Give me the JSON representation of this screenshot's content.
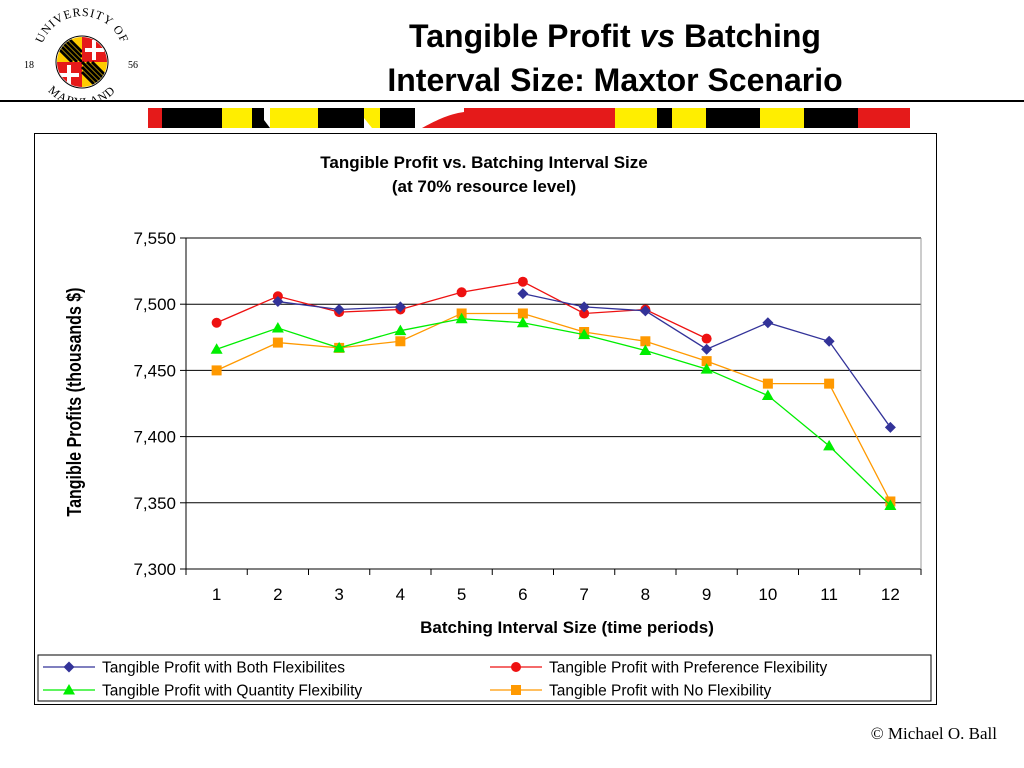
{
  "slide": {
    "title_part1": "Tangible Profit",
    "title_vs": "vs",
    "title_part2": "Batching",
    "title_line2": "Interval Size:  Maxtor Scenario",
    "copyright": "© Michael O. Ball"
  },
  "logo": {
    "arc_top": "UNIVERSITY OF",
    "arc_bottom": "MARYLAND",
    "year_left": "18",
    "year_right": "56"
  },
  "colors": {
    "brand_red": "#e51a1a",
    "brand_yellow": "#ffee00",
    "brand_black": "#000000"
  },
  "chart_data": {
    "type": "line",
    "title": "Tangible Profit vs. Batching Interval Size",
    "subtitle": "(at 70% resource level)",
    "xlabel": "Batching Interval Size (time periods)",
    "ylabel": "Tangible Profits (thousands $)",
    "categories": [
      "1",
      "2",
      "3",
      "4",
      "5",
      "6",
      "7",
      "8",
      "9",
      "10",
      "11",
      "12"
    ],
    "ylim": [
      7300,
      7550
    ],
    "yticks": [
      "7,300",
      "7,350",
      "7,400",
      "7,450",
      "7,500",
      "7,550"
    ],
    "yticks_values": [
      7300,
      7350,
      7400,
      7450,
      7500,
      7550
    ],
    "grid": "horizontal",
    "legend_position": "bottom",
    "series": [
      {
        "name": "Tangible Profit with Both Flexibilites",
        "color": "#333399",
        "marker": "diamond",
        "values": [
          null,
          7502,
          7496,
          7498,
          null,
          7508,
          7498,
          7495,
          7466,
          7486,
          7472,
          7407
        ]
      },
      {
        "name": "Tangible Profit with Preference Flexibility",
        "color": "#ee1111",
        "marker": "circle",
        "values": [
          7486,
          7506,
          7494,
          7496,
          7509,
          7517,
          7493,
          7496,
          7474,
          null,
          null,
          null
        ]
      },
      {
        "name": "Tangible Profit with Quantity Flexibility",
        "color": "#00ee00",
        "marker": "triangle",
        "values": [
          7466,
          7482,
          7467,
          7480,
          7489,
          7486,
          7477,
          7465,
          7451,
          7431,
          7393,
          7348
        ]
      },
      {
        "name": "Tangible Profit with No Flexibility",
        "color": "#ff9900",
        "marker": "square",
        "values": [
          7450,
          7471,
          7467,
          7472,
          7493,
          7493,
          7479,
          7472,
          7457,
          7440,
          7440,
          7351
        ]
      }
    ]
  }
}
